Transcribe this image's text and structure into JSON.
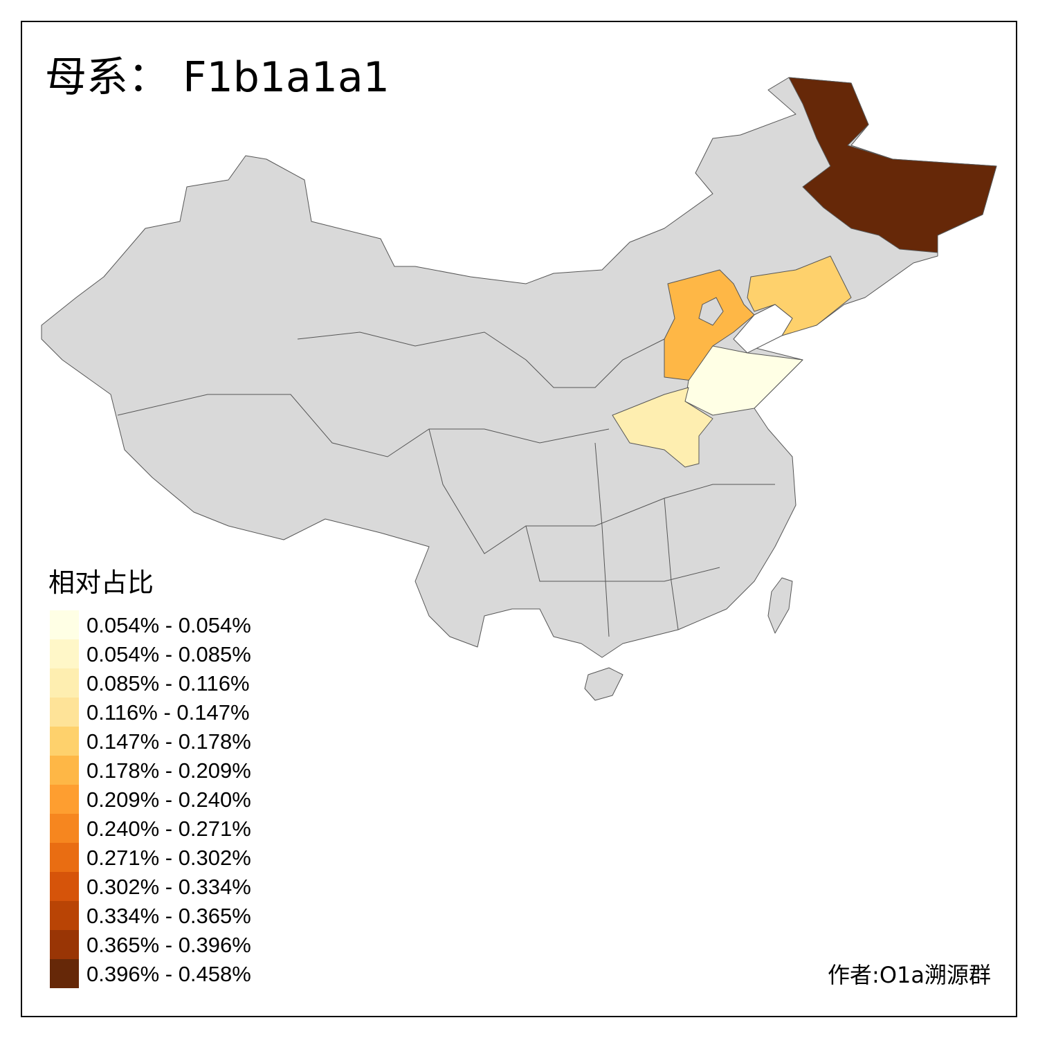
{
  "title": "母系： F1b1a1a1",
  "legend": {
    "title": "相对占比",
    "items": [
      {
        "label": "0.054% - 0.054%",
        "color": "#ffffe5"
      },
      {
        "label": "0.054% - 0.085%",
        "color": "#fff7c8"
      },
      {
        "label": "0.085% - 0.116%",
        "color": "#feeeb0"
      },
      {
        "label": "0.116% - 0.147%",
        "color": "#fee398"
      },
      {
        "label": "0.147% - 0.178%",
        "color": "#fed16c"
      },
      {
        "label": "0.178% - 0.209%",
        "color": "#feb746"
      },
      {
        "label": "0.209% - 0.240%",
        "color": "#fe9e30"
      },
      {
        "label": "0.240% - 0.271%",
        "color": "#f6861f"
      },
      {
        "label": "0.271% - 0.302%",
        "color": "#e96d12"
      },
      {
        "label": "0.302% - 0.334%",
        "color": "#d6540a"
      },
      {
        "label": "0.334% - 0.365%",
        "color": "#b94405"
      },
      {
        "label": "0.365% - 0.396%",
        "color": "#993505"
      },
      {
        "label": "0.396% - 0.458%",
        "color": "#662808"
      }
    ]
  },
  "author": "作者:O1a溯源群"
}
